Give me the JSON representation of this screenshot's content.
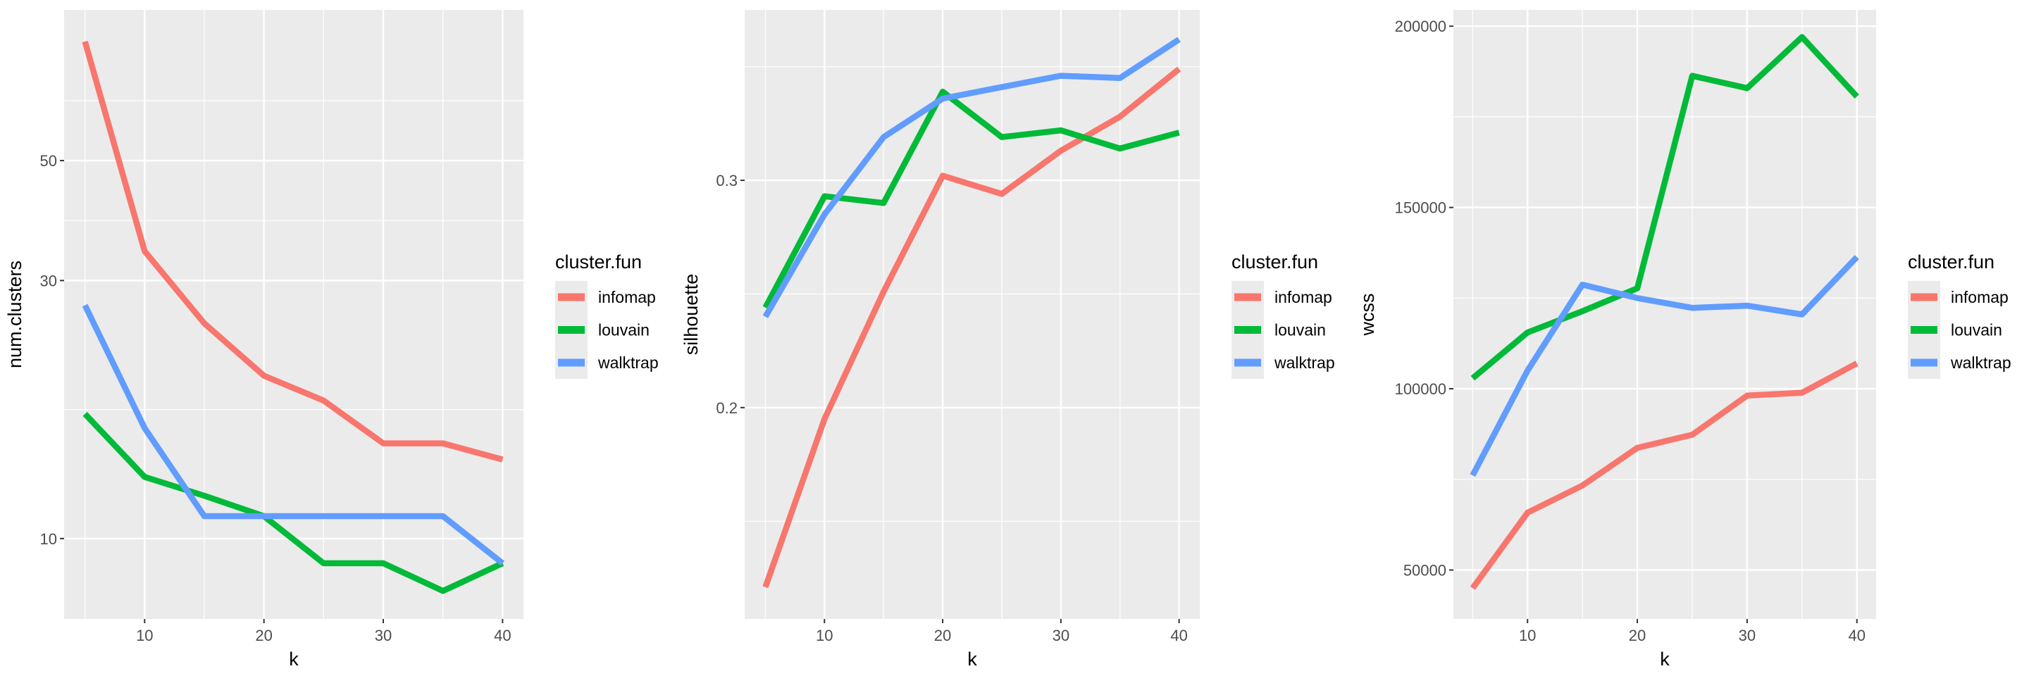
{
  "chart_data": [
    {
      "type": "line",
      "xlabel": "k",
      "ylabel": "num.clusters",
      "y_scale": "log10",
      "x": [
        5,
        10,
        15,
        20,
        25,
        30,
        35,
        40
      ],
      "xlim": [
        3.25,
        41.75
      ],
      "ylim": [
        7.1,
        95
      ],
      "x_ticks": [
        10,
        20,
        30,
        40
      ],
      "y_ticks": [
        10,
        30,
        50
      ],
      "grid": true,
      "legend": {
        "title": "cluster.fun",
        "position": "right"
      },
      "series": [
        {
          "name": "infomap",
          "color": "#F8766D",
          "values": [
            83,
            34,
            25,
            20,
            18,
            15,
            15,
            14
          ]
        },
        {
          "name": "louvain",
          "color": "#00BA38",
          "values": [
            17,
            13,
            12,
            11,
            9,
            9,
            8,
            9
          ]
        },
        {
          "name": "walktrap",
          "color": "#619CFF",
          "values": [
            27,
            16,
            11,
            11,
            11,
            11,
            11,
            9
          ]
        }
      ]
    },
    {
      "type": "line",
      "xlabel": "k",
      "ylabel": "silhouette",
      "y_scale": "linear",
      "x": [
        5,
        10,
        15,
        20,
        25,
        30,
        35,
        40
      ],
      "xlim": [
        3.25,
        41.75
      ],
      "ylim": [
        0.107,
        0.375
      ],
      "x_ticks": [
        10,
        20,
        30,
        40
      ],
      "y_ticks": [
        0.2,
        0.3
      ],
      "y_tick_labels": [
        "0.2",
        "0.3"
      ],
      "grid": true,
      "legend": {
        "title": "cluster.fun",
        "position": "right"
      },
      "series": [
        {
          "name": "infomap",
          "color": "#F8766D",
          "values": [
            0.121,
            0.195,
            0.251,
            0.302,
            0.294,
            0.313,
            0.328,
            0.349
          ]
        },
        {
          "name": "louvain",
          "color": "#00BA38",
          "values": [
            0.244,
            0.293,
            0.29,
            0.339,
            0.319,
            0.322,
            0.314,
            0.321
          ]
        },
        {
          "name": "walktrap",
          "color": "#619CFF",
          "values": [
            0.24,
            0.285,
            0.319,
            0.336,
            0.341,
            0.346,
            0.345,
            0.362
          ]
        }
      ]
    },
    {
      "type": "line",
      "xlabel": "k",
      "ylabel": "wcss",
      "y_scale": "linear",
      "x": [
        5,
        10,
        15,
        20,
        25,
        30,
        35,
        40
      ],
      "xlim": [
        3.25,
        41.75
      ],
      "ylim": [
        36500,
        204500
      ],
      "x_ticks": [
        10,
        20,
        30,
        40
      ],
      "y_ticks": [
        50000,
        100000,
        150000,
        200000
      ],
      "grid": true,
      "legend": {
        "title": "cluster.fun",
        "position": "right"
      },
      "series": [
        {
          "name": "infomap",
          "color": "#F8766D",
          "values": [
            45000,
            65800,
            73300,
            83700,
            87300,
            98100,
            98900,
            107000
          ]
        },
        {
          "name": "louvain",
          "color": "#00BA38",
          "values": [
            102900,
            115500,
            121400,
            127700,
            186300,
            182900,
            197000,
            180600
          ]
        },
        {
          "name": "walktrap",
          "color": "#619CFF",
          "values": [
            76100,
            105000,
            128700,
            125000,
            122300,
            122900,
            120500,
            136300
          ]
        }
      ]
    }
  ],
  "colors": {
    "panel_background": "#EBEBEB",
    "grid": "#FFFFFF"
  }
}
